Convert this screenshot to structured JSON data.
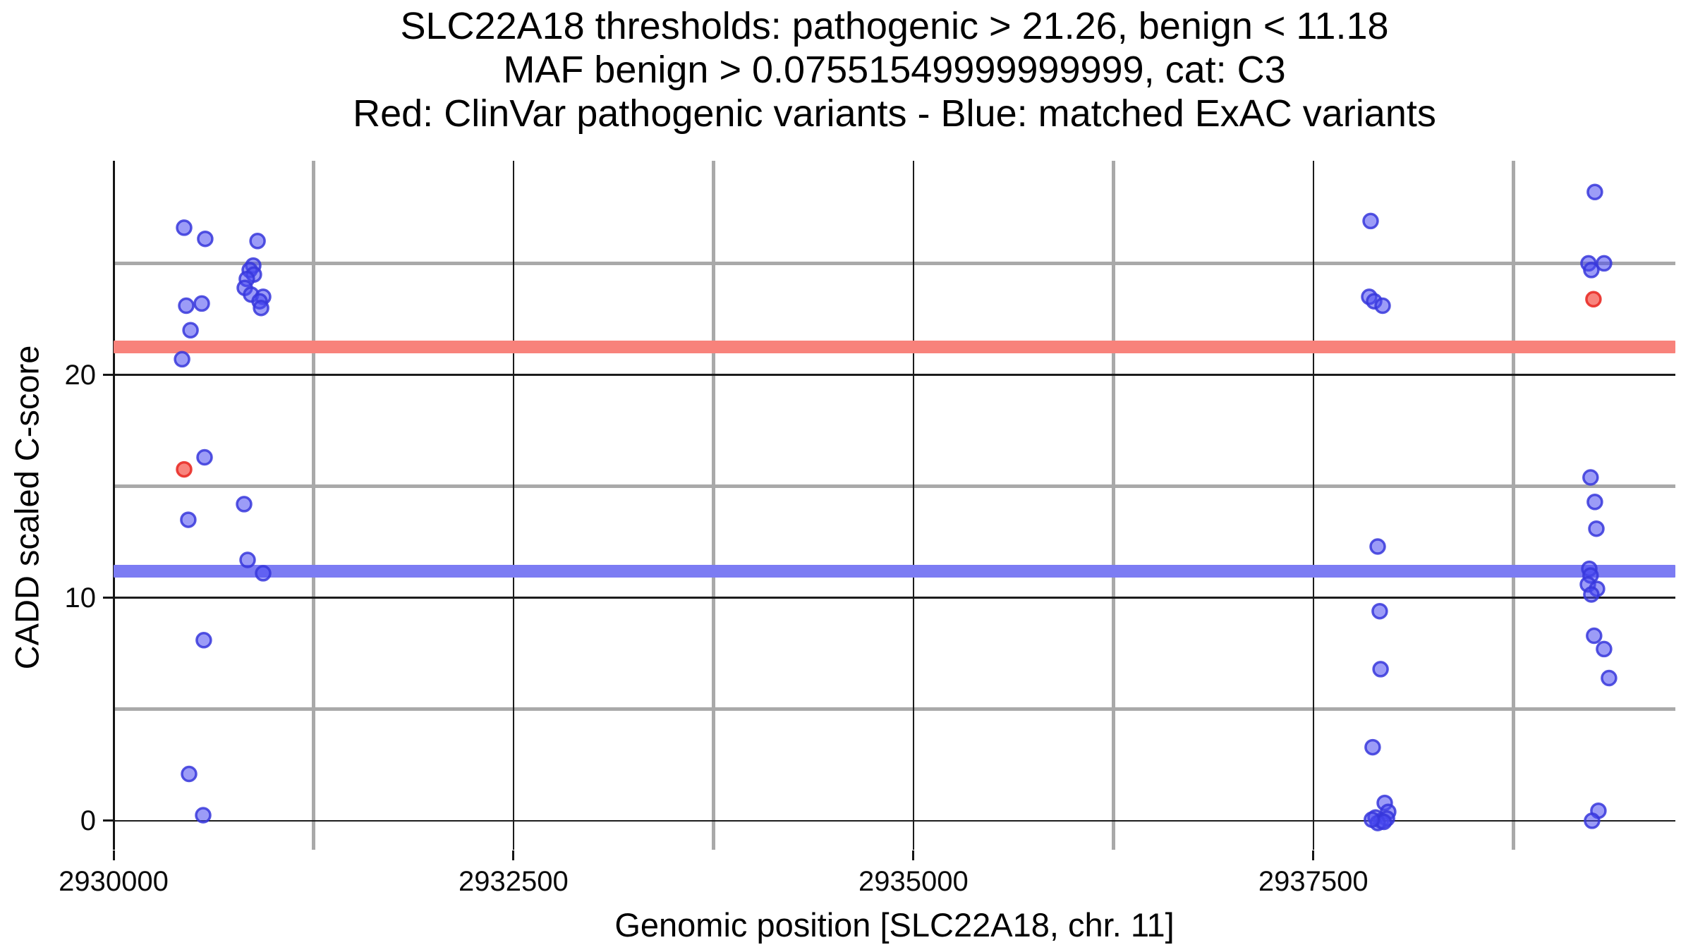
{
  "chart_data": {
    "type": "scatter",
    "title": [
      "SLC22A18 thresholds: pathogenic > 21.26, benign < 11.18",
      "MAF benign > 0.07551549999999999, cat: C3",
      "Red: ClinVar pathogenic variants - Blue: matched ExAC variants"
    ],
    "xlabel": "Genomic position [SLC22A18, chr. 11]",
    "ylabel": "CADD scaled C-score",
    "xlim": [
      2930000,
      2939763
    ],
    "ylim": [
      -1.3,
      29.6
    ],
    "x_major_ticks": [
      {
        "value": 2930000,
        "label": "2930000"
      },
      {
        "value": 2932500,
        "label": "2932500"
      },
      {
        "value": 2935000,
        "label": "2935000"
      },
      {
        "value": 2937500,
        "label": "2937500"
      }
    ],
    "x_minor_ticks": [
      2931250,
      2933750,
      2936250,
      2938750
    ],
    "y_major_ticks": [
      {
        "value": 0,
        "label": "0"
      },
      {
        "value": 10,
        "label": "10"
      },
      {
        "value": 20,
        "label": "20"
      }
    ],
    "y_minor_ticks": [
      5,
      15,
      25
    ],
    "grid": true,
    "legend_position": "none",
    "hlines": [
      {
        "name": "pathogenic-threshold",
        "y": 21.26,
        "color": "#F8827B"
      },
      {
        "name": "benign-threshold",
        "y": 11.18,
        "color": "#7C7CF3"
      }
    ],
    "series": [
      {
        "name": "matched ExAC variants",
        "color_fill": "rgba(75,75,240,0.55)",
        "color_stroke": "rgba(55,55,220,0.85)",
        "points": [
          [
            2930441,
            26.6
          ],
          [
            2930573,
            26.1
          ],
          [
            2930900,
            26.0
          ],
          [
            2930873,
            24.9
          ],
          [
            2930851,
            24.7
          ],
          [
            2930877,
            24.5
          ],
          [
            2930833,
            24.3
          ],
          [
            2930820,
            23.9
          ],
          [
            2930860,
            23.6
          ],
          [
            2930935,
            23.5
          ],
          [
            2930913,
            23.3
          ],
          [
            2930922,
            23.0
          ],
          [
            2930454,
            23.1
          ],
          [
            2930551,
            23.2
          ],
          [
            2930481,
            22.0
          ],
          [
            2930428,
            20.7
          ],
          [
            2930569,
            16.3
          ],
          [
            2930816,
            14.2
          ],
          [
            2930467,
            13.5
          ],
          [
            2930838,
            11.7
          ],
          [
            2930935,
            11.1
          ],
          [
            2930564,
            8.1
          ],
          [
            2930472,
            2.1
          ],
          [
            2930560,
            0.25
          ],
          [
            2937858,
            26.9
          ],
          [
            2937849,
            23.5
          ],
          [
            2937880,
            23.3
          ],
          [
            2937933,
            23.1
          ],
          [
            2937902,
            12.3
          ],
          [
            2937915,
            9.4
          ],
          [
            2937920,
            6.8
          ],
          [
            2937871,
            3.3
          ],
          [
            2937946,
            0.8
          ],
          [
            2937968,
            0.4
          ],
          [
            2937889,
            0.15
          ],
          [
            2937924,
            0.0
          ],
          [
            2937960,
            0.1
          ],
          [
            2937902,
            -0.1
          ],
          [
            2937941,
            -0.05
          ],
          [
            2937866,
            0.05
          ],
          [
            2939260,
            28.2
          ],
          [
            2939220,
            25.0
          ],
          [
            2939238,
            24.7
          ],
          [
            2939317,
            25.0
          ],
          [
            2939233,
            15.4
          ],
          [
            2939260,
            14.3
          ],
          [
            2939269,
            13.1
          ],
          [
            2939225,
            11.3
          ],
          [
            2939233,
            11.0
          ],
          [
            2939216,
            10.6
          ],
          [
            2939273,
            10.4
          ],
          [
            2939238,
            10.15
          ],
          [
            2939255,
            8.3
          ],
          [
            2939317,
            7.7
          ],
          [
            2939348,
            6.4
          ],
          [
            2939282,
            0.45
          ],
          [
            2939242,
            0.0
          ]
        ]
      },
      {
        "name": "ClinVar pathogenic variants",
        "color_fill": "rgba(245,80,70,0.70)",
        "color_stroke": "rgba(233,45,40,0.90)",
        "points": [
          [
            2930441,
            15.76
          ],
          [
            2939251,
            23.39
          ]
        ]
      }
    ]
  }
}
